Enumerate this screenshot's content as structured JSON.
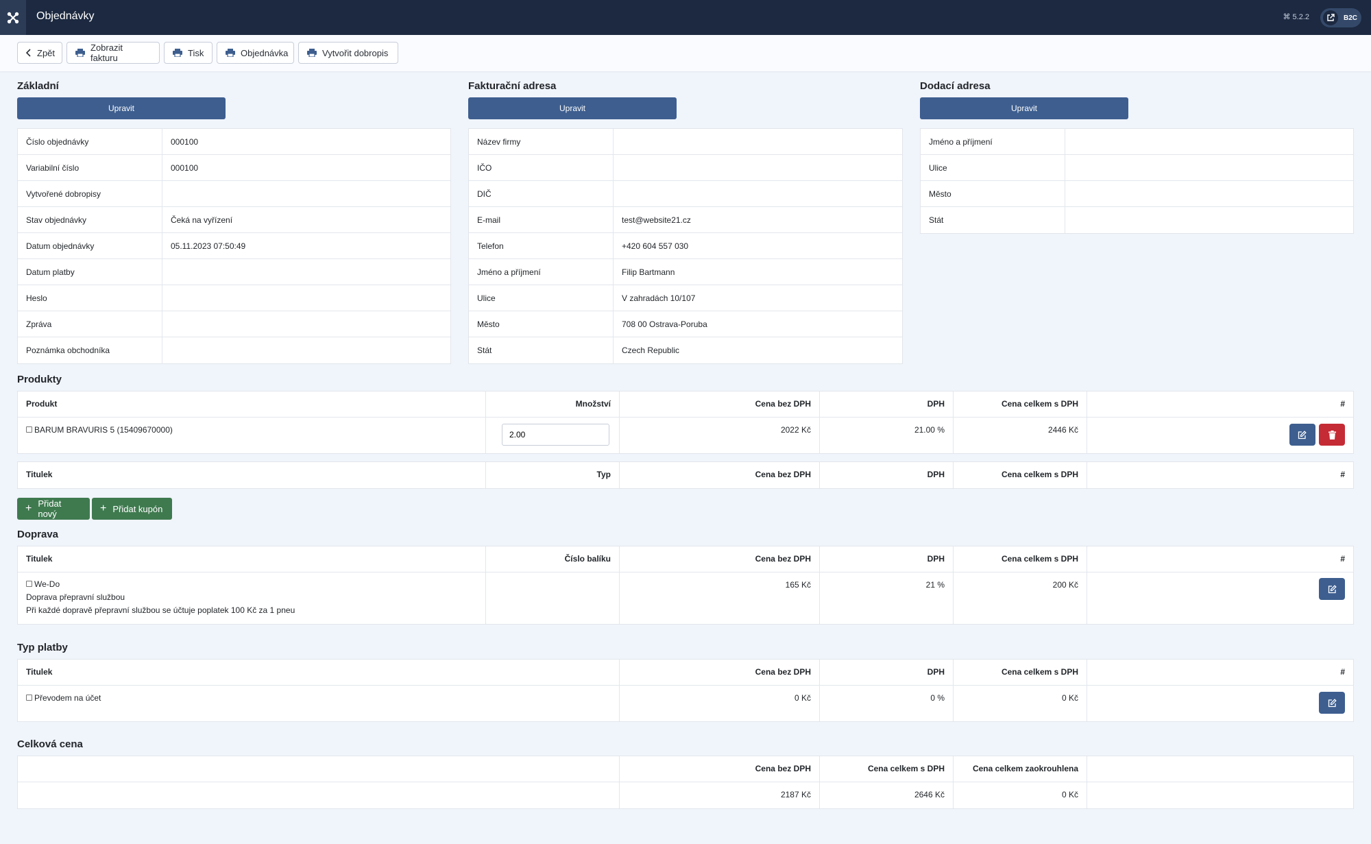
{
  "header": {
    "title": "Objednávky",
    "version": "⌘ 5.2.2",
    "site_badge": "B2C"
  },
  "toolbar": {
    "back": "Zpět",
    "show_invoice": "Zobrazit fakturu",
    "print": "Tisk",
    "order": "Objednávka",
    "create_credit_note": "Vytvořit dobropis"
  },
  "basic": {
    "title": "Základní",
    "edit": "Upravit",
    "rows": [
      {
        "label": "Číslo objednávky",
        "value": "000100"
      },
      {
        "label": "Variabilní číslo",
        "value": "000100"
      },
      {
        "label": "Vytvořené dobropisy",
        "value": ""
      },
      {
        "label": "Stav objednávky",
        "value": "Čeká na vyřízení"
      },
      {
        "label": "Datum objednávky",
        "value": "05.11.2023 07:50:49"
      },
      {
        "label": "Datum platby",
        "value": ""
      },
      {
        "label": "Heslo",
        "value": ""
      },
      {
        "label": "Zpráva",
        "value": ""
      },
      {
        "label": "Poznámka obchodníka",
        "value": ""
      }
    ]
  },
  "billing": {
    "title": "Fakturační adresa",
    "edit": "Upravit",
    "rows": [
      {
        "label": "Název firmy",
        "value": ""
      },
      {
        "label": "IČO",
        "value": ""
      },
      {
        "label": "DIČ",
        "value": ""
      },
      {
        "label": "E-mail",
        "value": "test@website21.cz"
      },
      {
        "label": "Telefon",
        "value": "+420 604 557 030"
      },
      {
        "label": "Jméno a příjmení",
        "value": "Filip Bartmann"
      },
      {
        "label": "Ulice",
        "value": "V zahradách 10/107"
      },
      {
        "label": "Město",
        "value": "708 00 Ostrava-Poruba"
      },
      {
        "label": "Stát",
        "value": "Czech Republic"
      }
    ]
  },
  "shipping_address": {
    "title": "Dodací adresa",
    "edit": "Upravit",
    "rows": [
      {
        "label": "Jméno a příjmení",
        "value": ""
      },
      {
        "label": "Ulice",
        "value": ""
      },
      {
        "label": "Město",
        "value": ""
      },
      {
        "label": "Stát",
        "value": ""
      }
    ]
  },
  "products": {
    "title": "Produkty",
    "headers": {
      "product": "Produkt",
      "qty": "Množství",
      "price_ex": "Cena bez DPH",
      "vat": "DPH",
      "total": "Cena celkem s DPH",
      "hash": "#"
    },
    "items": [
      {
        "name": "BARUM BRAVURIS 5 (15409670000)",
        "qty": "2.00",
        "price_ex": "2022 Kč",
        "vat": "21.00 %",
        "total": "2446 Kč"
      }
    ],
    "coupons_headers": {
      "title": "Titulek",
      "type": "Typ",
      "price_ex": "Cena bez DPH",
      "vat": "DPH",
      "total": "Cena celkem s DPH",
      "hash": "#"
    },
    "add_new": "Přidat nový",
    "add_coupon": "Přidat kupón"
  },
  "delivery": {
    "title": "Doprava",
    "headers": {
      "title": "Titulek",
      "package": "Číslo balíku",
      "price_ex": "Cena bez DPH",
      "vat": "DPH",
      "total": "Cena celkem s DPH",
      "hash": "#"
    },
    "item": {
      "name": "We-Do",
      "line2": "Doprava přepravní službou",
      "line3": "Při každé dopravě přepravní službou se účtuje poplatek 100 Kč za 1 pneu",
      "price_ex": "165 Kč",
      "vat": "21 %",
      "total": "200 Kč"
    }
  },
  "payment": {
    "title": "Typ platby",
    "headers": {
      "title": "Titulek",
      "price_ex": "Cena bez DPH",
      "vat": "DPH",
      "total": "Cena celkem s DPH",
      "hash": "#"
    },
    "item": {
      "name": "Převodem na účet",
      "price_ex": "0 Kč",
      "vat": "0 %",
      "total": "0 Kč"
    }
  },
  "total": {
    "title": "Celková cena",
    "headers": {
      "price_ex": "Cena bez DPH",
      "total": "Cena celkem s DPH",
      "rounded": "Cena celkem zaokrouhlena"
    },
    "values": {
      "price_ex": "2187 Kč",
      "total": "2646 Kč",
      "rounded": "0 Kč"
    }
  },
  "colors": {
    "header_bg": "#1c2940",
    "primary": "#3d5e8f",
    "danger": "#c52b35",
    "success": "#3f7a4f",
    "page_bg": "#f0f4fb"
  }
}
